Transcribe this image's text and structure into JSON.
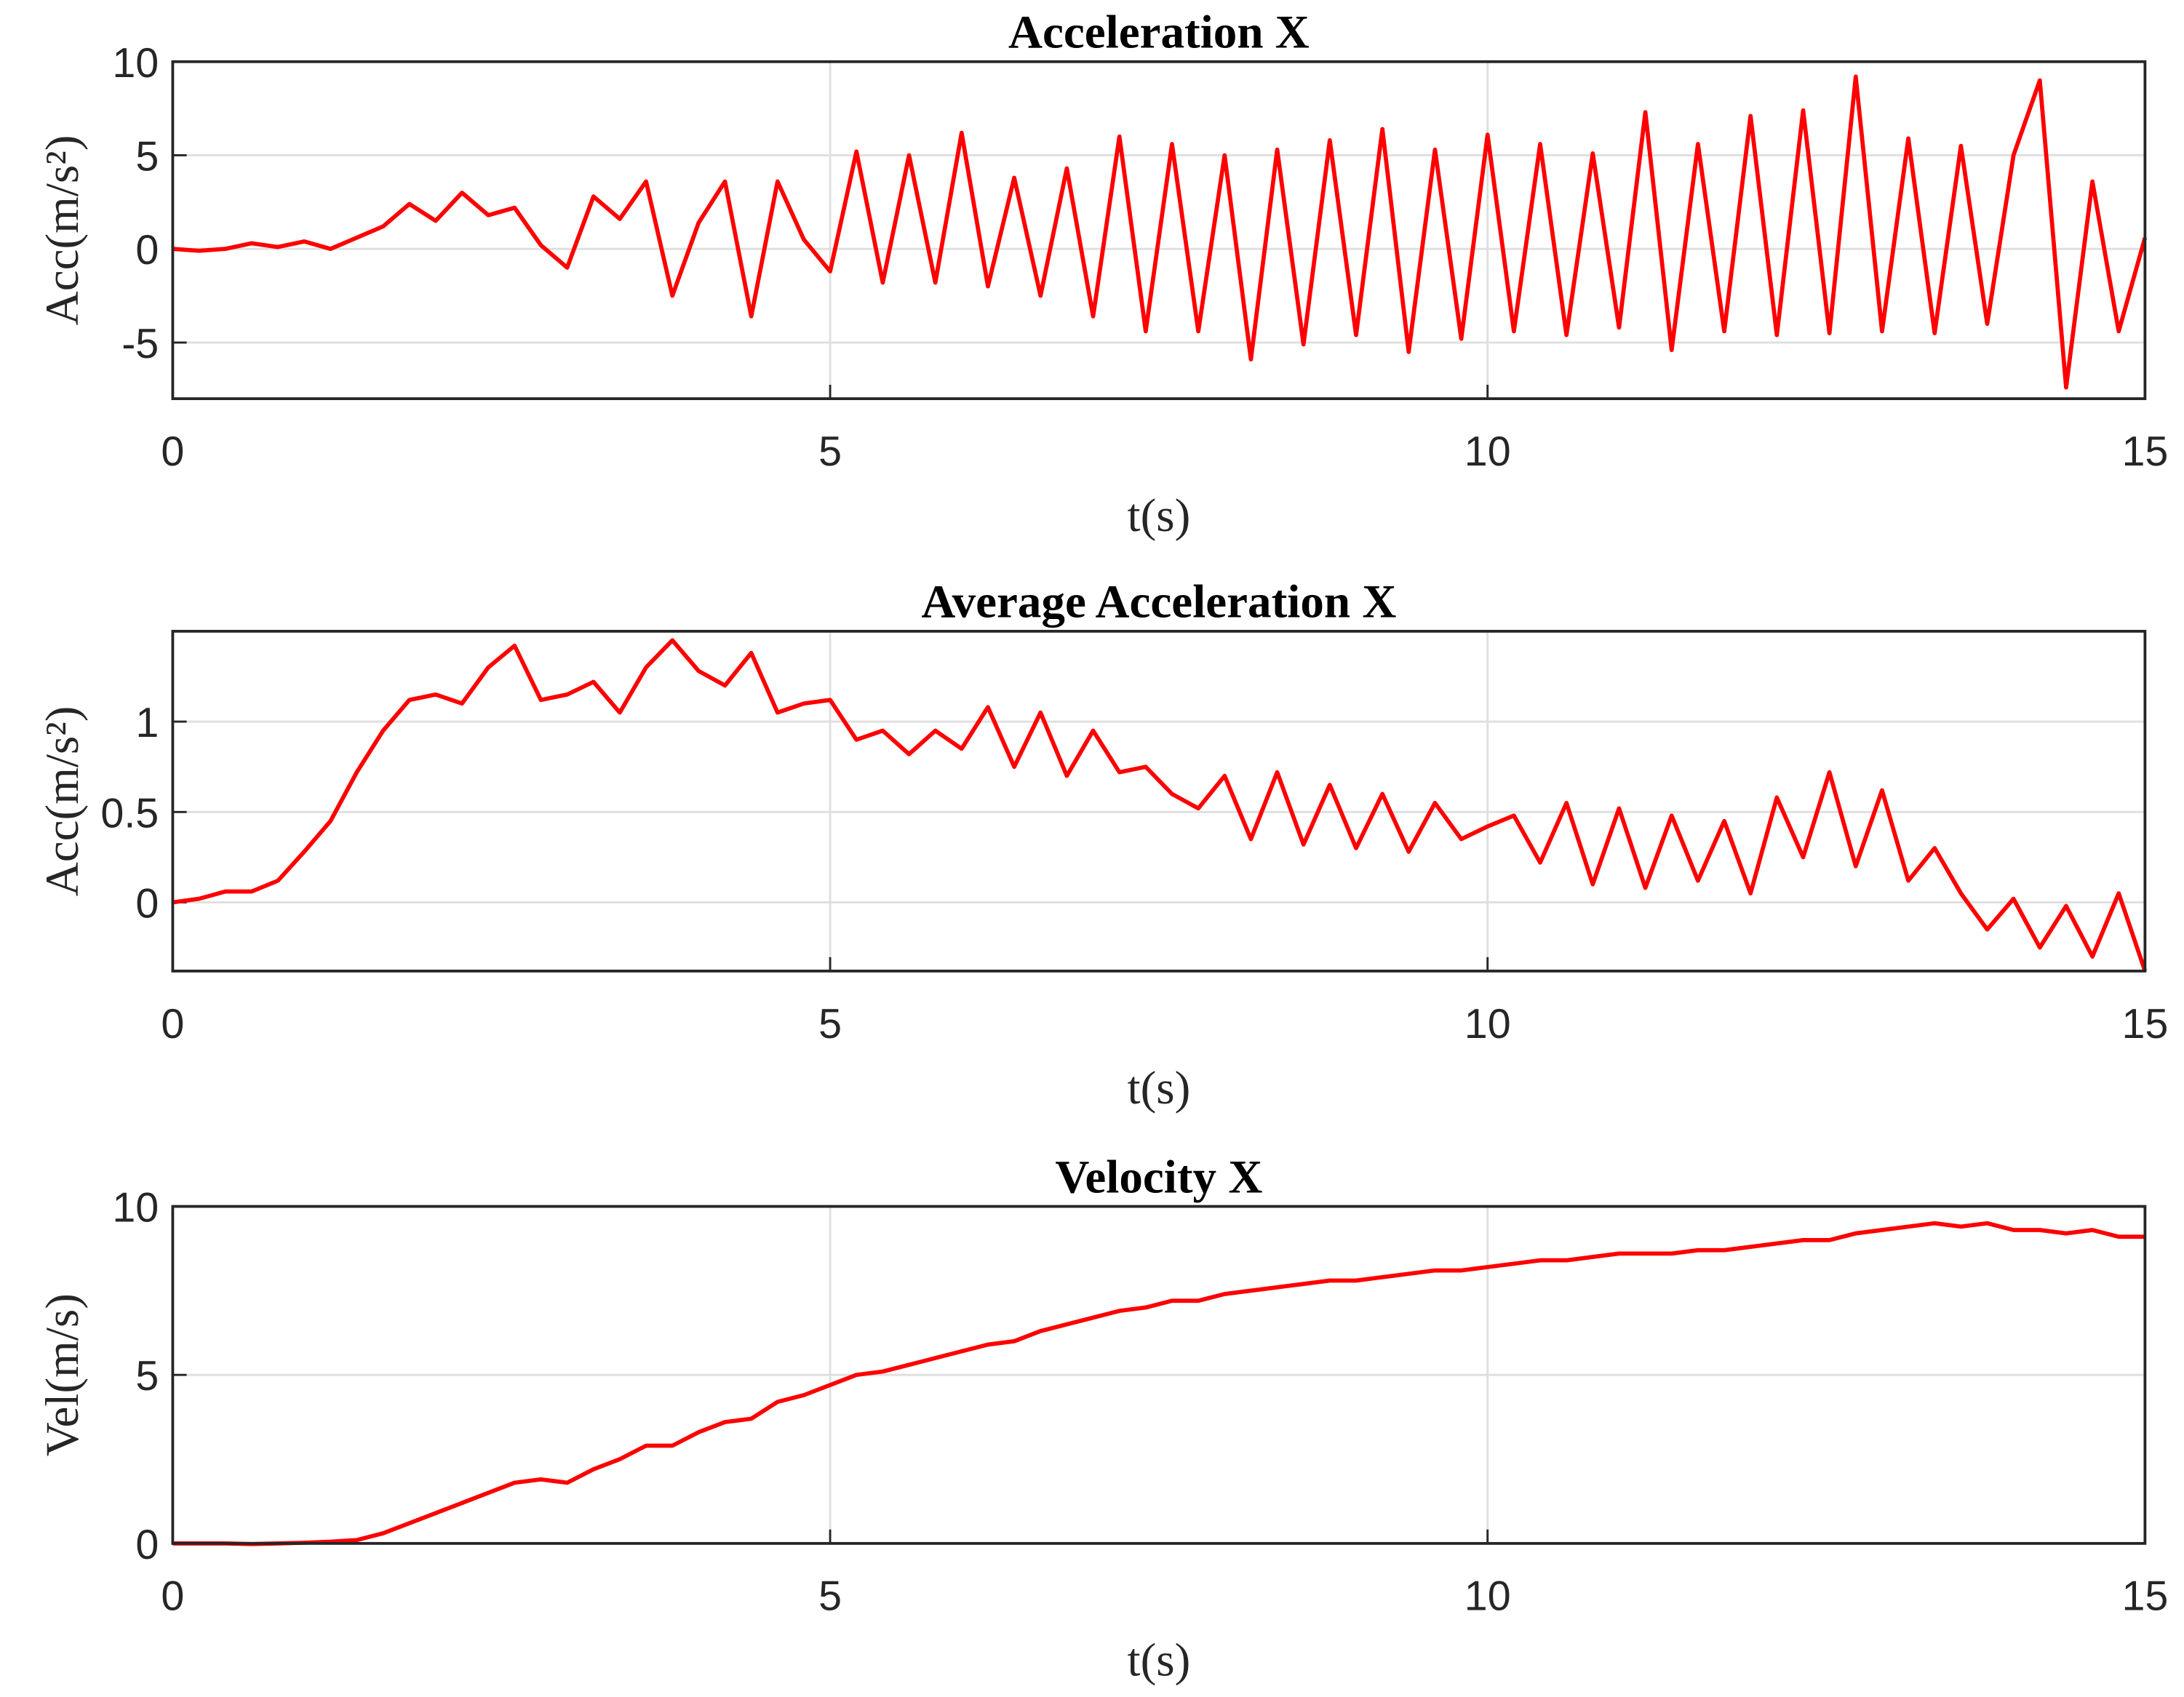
{
  "chart_data": [
    {
      "type": "line",
      "title": "Acceleration X",
      "xlabel": "t(s)",
      "ylabel": "Acc(m/s²)",
      "color": "#ff0000",
      "grid": true,
      "xlim": [
        0,
        15
      ],
      "xticks": [
        0,
        5,
        10,
        15
      ],
      "ylim": [
        -8,
        10
      ],
      "yticks": [
        -5,
        0,
        5,
        10
      ],
      "x": [
        0,
        0.2,
        0.4,
        0.6,
        0.8,
        1,
        1.2,
        1.4,
        1.6,
        1.8,
        2,
        2.2,
        2.4,
        2.6,
        2.8,
        3,
        3.2,
        3.4,
        3.6,
        3.8,
        4,
        4.2,
        4.4,
        4.6,
        4.8,
        5,
        5.2,
        5.4,
        5.6,
        5.8,
        6,
        6.2,
        6.4,
        6.6,
        6.8,
        7,
        7.2,
        7.4,
        7.6,
        7.8,
        8,
        8.2,
        8.4,
        8.6,
        8.8,
        9,
        9.2,
        9.4,
        9.6,
        9.8,
        10,
        10.2,
        10.4,
        10.6,
        10.8,
        11,
        11.2,
        11.4,
        11.6,
        11.8,
        12,
        12.2,
        12.4,
        12.6,
        12.8,
        13,
        13.2,
        13.4,
        13.6,
        13.8,
        14,
        14.2,
        14.4,
        14.6,
        14.8,
        15
      ],
      "values": [
        0,
        -0.1,
        0,
        0.3,
        0.1,
        0.4,
        0,
        0.6,
        1.2,
        2.4,
        1.5,
        3.0,
        1.8,
        2.2,
        0.2,
        -1.0,
        2.8,
        1.6,
        3.6,
        -2.5,
        1.4,
        3.6,
        -3.6,
        3.6,
        0.5,
        -1.2,
        5.2,
        -1.8,
        5.0,
        -1.8,
        6.2,
        -2.0,
        3.8,
        -2.5,
        4.3,
        -3.6,
        6.0,
        -4.4,
        5.6,
        -4.4,
        5.0,
        -5.9,
        5.3,
        -5.1,
        5.8,
        -4.6,
        6.4,
        -5.5,
        5.3,
        -4.8,
        6.1,
        -4.4,
        5.6,
        -4.6,
        5.1,
        -4.2,
        7.3,
        -5.4,
        5.6,
        -4.4,
        7.1,
        -4.6,
        7.4,
        -4.5,
        9.2,
        -4.4,
        5.9,
        -4.5,
        5.5,
        -4.0,
        5.0,
        9.0,
        -7.4,
        3.6,
        -4.4,
        0.6
      ]
    },
    {
      "type": "line",
      "title": "Average Acceleration X",
      "xlabel": "t(s)",
      "ylabel": "Acc(m/s²)",
      "color": "#ff0000",
      "grid": true,
      "xlim": [
        0,
        15
      ],
      "xticks": [
        0,
        5,
        10,
        15
      ],
      "ylim": [
        -0.38,
        1.5
      ],
      "yticks": [
        0,
        0.5,
        1
      ],
      "x": [
        0,
        0.2,
        0.4,
        0.6,
        0.8,
        1,
        1.2,
        1.4,
        1.6,
        1.8,
        2,
        2.2,
        2.4,
        2.6,
        2.8,
        3,
        3.2,
        3.4,
        3.6,
        3.8,
        4,
        4.2,
        4.4,
        4.6,
        4.8,
        5,
        5.2,
        5.4,
        5.6,
        5.8,
        6,
        6.2,
        6.4,
        6.6,
        6.8,
        7,
        7.2,
        7.4,
        7.6,
        7.8,
        8,
        8.2,
        8.4,
        8.6,
        8.8,
        9,
        9.2,
        9.4,
        9.6,
        9.8,
        10,
        10.2,
        10.4,
        10.6,
        10.8,
        11,
        11.2,
        11.4,
        11.6,
        11.8,
        12,
        12.2,
        12.4,
        12.6,
        12.8,
        13,
        13.2,
        13.4,
        13.6,
        13.8,
        14,
        14.2,
        14.4,
        14.6,
        14.8,
        15
      ],
      "values": [
        0,
        0.02,
        0.06,
        0.06,
        0.12,
        0.28,
        0.45,
        0.72,
        0.95,
        1.12,
        1.15,
        1.1,
        1.3,
        1.42,
        1.12,
        1.15,
        1.22,
        1.05,
        1.3,
        1.45,
        1.28,
        1.2,
        1.38,
        1.05,
        1.1,
        1.12,
        0.9,
        0.95,
        0.82,
        0.95,
        0.85,
        1.08,
        0.75,
        1.05,
        0.7,
        0.95,
        0.72,
        0.75,
        0.6,
        0.52,
        0.7,
        0.35,
        0.72,
        0.32,
        0.65,
        0.3,
        0.6,
        0.28,
        0.55,
        0.35,
        0.42,
        0.48,
        0.22,
        0.55,
        0.1,
        0.52,
        0.08,
        0.48,
        0.12,
        0.45,
        0.05,
        0.58,
        0.25,
        0.72,
        0.2,
        0.62,
        0.12,
        0.3,
        0.05,
        -0.15,
        0.02,
        -0.25,
        -0.02,
        -0.3,
        0.05,
        -0.38
      ]
    },
    {
      "type": "line",
      "title": "Velocity X",
      "xlabel": "t(s)",
      "ylabel": "Vel(m/s)",
      "color": "#ff0000",
      "grid": true,
      "xlim": [
        0,
        15
      ],
      "xticks": [
        0,
        5,
        10,
        15
      ],
      "ylim": [
        0,
        10
      ],
      "yticks": [
        0,
        5,
        10
      ],
      "x": [
        0,
        0.2,
        0.4,
        0.6,
        0.8,
        1,
        1.2,
        1.4,
        1.6,
        1.8,
        2,
        2.2,
        2.4,
        2.6,
        2.8,
        3,
        3.2,
        3.4,
        3.6,
        3.8,
        4,
        4.2,
        4.4,
        4.6,
        4.8,
        5,
        5.2,
        5.4,
        5.6,
        5.8,
        6,
        6.2,
        6.4,
        6.6,
        6.8,
        7,
        7.2,
        7.4,
        7.6,
        7.8,
        8,
        8.2,
        8.4,
        8.6,
        8.8,
        9,
        9.2,
        9.4,
        9.6,
        9.8,
        10,
        10.2,
        10.4,
        10.6,
        10.8,
        11,
        11.2,
        11.4,
        11.6,
        11.8,
        12,
        12.2,
        12.4,
        12.6,
        12.8,
        13,
        13.2,
        13.4,
        13.6,
        13.8,
        14,
        14.2,
        14.4,
        14.6,
        14.8,
        15
      ],
      "values": [
        0,
        0,
        0,
        -0.02,
        0,
        0.02,
        0.05,
        0.1,
        0.3,
        0.6,
        0.9,
        1.2,
        1.5,
        1.8,
        1.9,
        1.8,
        2.2,
        2.5,
        2.9,
        2.9,
        3.3,
        3.6,
        3.7,
        4.2,
        4.4,
        4.7,
        5.0,
        5.1,
        5.3,
        5.5,
        5.7,
        5.9,
        6.0,
        6.3,
        6.5,
        6.7,
        6.9,
        7.0,
        7.2,
        7.2,
        7.4,
        7.5,
        7.6,
        7.7,
        7.8,
        7.8,
        7.9,
        8.0,
        8.1,
        8.1,
        8.2,
        8.3,
        8.4,
        8.4,
        8.5,
        8.6,
        8.6,
        8.6,
        8.7,
        8.7,
        8.8,
        8.9,
        9.0,
        9.0,
        9.2,
        9.3,
        9.4,
        9.5,
        9.4,
        9.5,
        9.3,
        9.3,
        9.2,
        9.3,
        9.1,
        9.1
      ]
    }
  ]
}
